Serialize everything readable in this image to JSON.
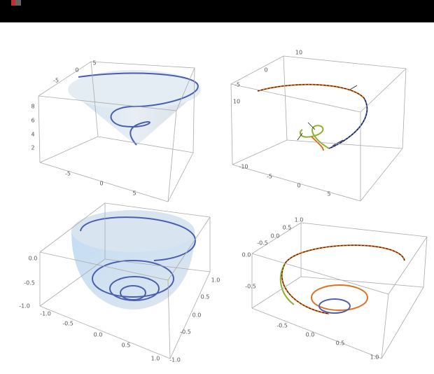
{
  "panels": [
    {
      "ticks": [
        "-5",
        "0",
        "5",
        "8",
        "6",
        "4",
        "2",
        "-5",
        "0",
        "5"
      ]
    },
    {
      "ticks": [
        "10",
        "-5",
        "0",
        "10",
        "-10",
        "-5",
        "0",
        "5"
      ]
    },
    {
      "ticks": [
        "0.0",
        "-0.5",
        "-1.0",
        "-1.0",
        "-0.5",
        "0.0",
        "0.5",
        "1.0",
        "1.0",
        "0.5",
        "0.0",
        "-0.5",
        "-1.0"
      ]
    },
    {
      "ticks": [
        "1.0",
        "0.5",
        "0.0",
        "-0.5",
        "0.0",
        "-0.5",
        "-0.5",
        "0.0",
        "0.5",
        "1.0"
      ]
    }
  ]
}
